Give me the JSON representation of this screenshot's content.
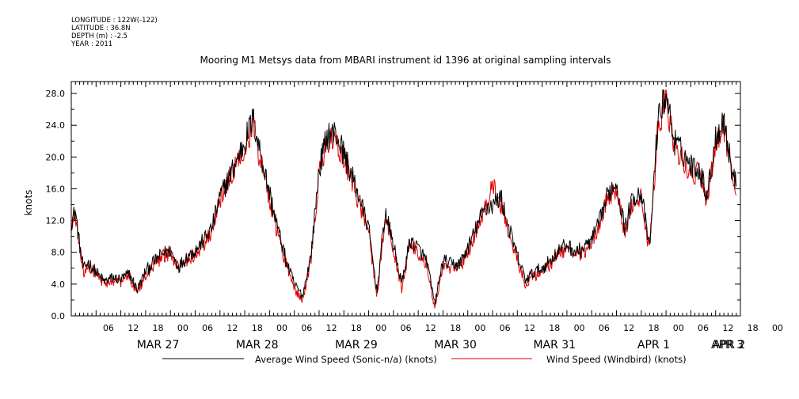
{
  "header": {
    "meta_lines": [
      "LONGITUDE : 122W(-122)",
      "LATITUDE : 36.8N",
      "DEPTH (m) : -2.5",
      "YEAR : 2011"
    ]
  },
  "chart_data": {
    "type": "line",
    "title": "Mooring M1 Metsys data from MBARI instrument id 1396 at original sampling intervals",
    "ylabel": "knots",
    "xlabel": "",
    "ylim": [
      0,
      29.5
    ],
    "xlim_hours": [
      0,
      162
    ],
    "x_start": "2011-03-26 21:00",
    "yticks": [
      0.0,
      4.0,
      8.0,
      12.0,
      16.0,
      20.0,
      24.0,
      28.0
    ],
    "ytick_labels": [
      "0.0",
      "4.0",
      "8.0",
      "12.0",
      "16.0",
      "20.0",
      "24.0",
      "28.0"
    ],
    "hour_tick_labels": [
      "06",
      "12",
      "18",
      "00",
      "06",
      "12",
      "18",
      "00",
      "06",
      "12",
      "18",
      "00",
      "06",
      "12",
      "18",
      "00",
      "06",
      "12",
      "18",
      "00",
      "06",
      "12",
      "18",
      "00",
      "06",
      "12",
      "18",
      "00"
    ],
    "day_labels": [
      "MAR 27",
      "MAR 28",
      "MAR 29",
      "MAR 30",
      "MAR 31",
      "APR 1",
      "APR 2",
      "APR 3"
    ],
    "grid": false,
    "legend_position": "bottom",
    "x_hours": [
      0,
      1,
      2,
      3,
      4,
      6,
      8,
      10,
      12,
      14,
      16,
      18,
      20,
      22,
      24,
      26,
      28,
      30,
      32,
      34,
      36,
      38,
      40,
      42,
      44,
      46,
      48,
      50,
      52,
      54,
      56,
      58,
      60,
      62,
      64,
      66,
      68,
      70,
      72,
      74,
      76,
      78,
      80,
      82,
      84,
      86,
      88,
      90,
      92,
      94,
      96,
      98,
      100,
      102,
      104,
      106,
      108,
      110,
      112,
      114,
      116,
      118,
      120,
      122,
      124,
      126,
      128,
      130,
      132,
      134,
      136,
      138,
      140,
      142,
      144,
      146,
      148,
      150,
      152,
      154,
      156,
      158,
      160,
      161
    ],
    "series": [
      {
        "name": "Average Wind Speed (Sonic-n/a) (knots)",
        "color": "#000000",
        "values": [
          11.8,
          13.2,
          9.0,
          5.8,
          6.8,
          5.5,
          4.3,
          4.8,
          4.6,
          5.3,
          3.3,
          5.6,
          6.8,
          7.8,
          8.2,
          6.2,
          7.5,
          8.2,
          9.5,
          11.0,
          15.0,
          17.2,
          19.5,
          22.0,
          24.8,
          20.0,
          15.5,
          11.0,
          7.0,
          4.0,
          2.5,
          7.5,
          18.5,
          22.8,
          23.0,
          20.5,
          17.5,
          14.5,
          11.0,
          3.0,
          13.0,
          9.0,
          4.0,
          9.5,
          8.5,
          7.0,
          1.5,
          7.0,
          6.5,
          6.5,
          8.5,
          11.0,
          13.5,
          14.0,
          15.0,
          11.0,
          7.5,
          4.5,
          5.5,
          6.0,
          7.0,
          8.2,
          9.0,
          8.0,
          8.5,
          9.5,
          12.0,
          15.5,
          16.8,
          11.0,
          15.0,
          15.5,
          8.5,
          24.5,
          28.0,
          22.0,
          20.5,
          19.0,
          18.5,
          15.2,
          22.5,
          24.8,
          18.0,
          16.5
        ]
      },
      {
        "name": "Wind Speed (Windbird) (knots)",
        "color": "#e00000",
        "values": [
          11.2,
          12.5,
          8.5,
          5.5,
          6.4,
          5.2,
          4.0,
          4.5,
          4.3,
          5.0,
          3.0,
          5.2,
          6.4,
          7.4,
          7.8,
          5.8,
          7.0,
          7.8,
          9.0,
          10.5,
          14.5,
          16.8,
          19.0,
          21.5,
          24.0,
          19.2,
          14.8,
          10.3,
          6.5,
          3.5,
          2.0,
          7.0,
          18.0,
          22.0,
          22.2,
          19.8,
          16.8,
          13.8,
          10.5,
          2.5,
          12.5,
          8.5,
          3.5,
          9.0,
          8.0,
          6.5,
          1.0,
          6.5,
          6.0,
          6.0,
          8.0,
          10.5,
          13.0,
          16.5,
          14.0,
          10.5,
          7.0,
          4.0,
          5.0,
          5.5,
          6.5,
          7.8,
          8.5,
          7.5,
          8.0,
          9.0,
          11.5,
          15.0,
          16.0,
          10.5,
          14.5,
          14.8,
          8.0,
          23.5,
          27.5,
          21.2,
          19.5,
          18.0,
          17.8,
          14.5,
          21.8,
          24.0,
          17.5,
          16.0
        ]
      }
    ]
  }
}
